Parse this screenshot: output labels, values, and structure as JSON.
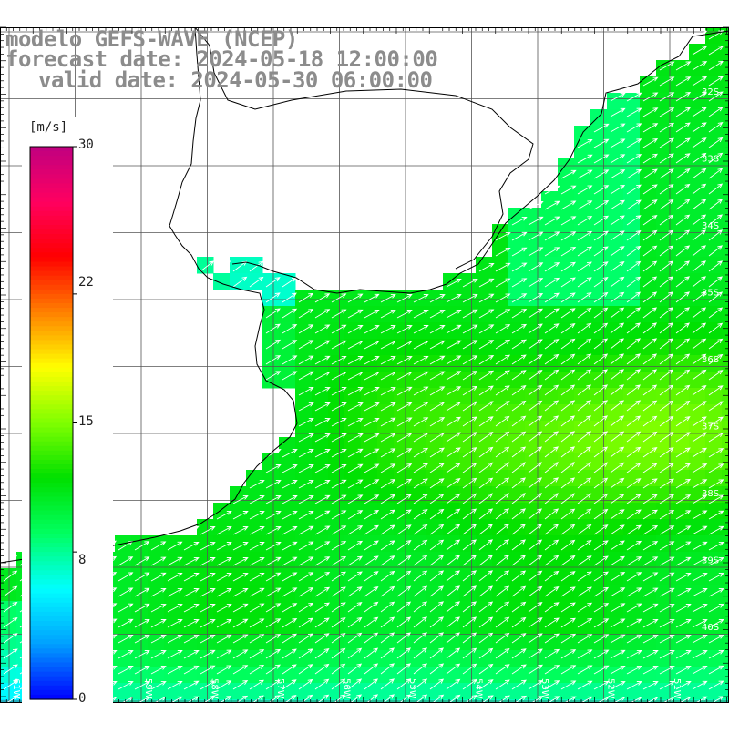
{
  "title": {
    "line1": "modelo GEFS-WAVE (NCEP)",
    "line2": "forecast date: 2024-05-18 12:00:00",
    "line3": "valid date: 2024-05-30 06:00:00"
  },
  "colorbar": {
    "unit_label": "[m/s]",
    "ticks": [
      "30",
      "22",
      "15",
      "8",
      "0"
    ],
    "tick_values": [
      30,
      22,
      15,
      8,
      0
    ],
    "min": 0,
    "max": 30,
    "colors": [
      "#0000ff",
      "#00a0ff",
      "#00ffff",
      "#00ff60",
      "#00e000",
      "#80ff00",
      "#ffff00",
      "#ff8000",
      "#ff0000",
      "#ff0060",
      "#c00080"
    ]
  },
  "map": {
    "field": "wind speed",
    "lat_labels": [
      "32S",
      "33S",
      "34S",
      "35S",
      "36S",
      "37S",
      "38S",
      "39S",
      "40S"
    ],
    "lon_labels": [
      "61W",
      "60W",
      "59W",
      "58W",
      "57W",
      "56W",
      "55W",
      "54W",
      "53W",
      "52W",
      "51W"
    ],
    "land_color": "#ffffff",
    "grid_color": "#555555",
    "coast_color": "#000000",
    "arrow_color": "#ffffff",
    "arrow_direction": "northeast"
  }
}
